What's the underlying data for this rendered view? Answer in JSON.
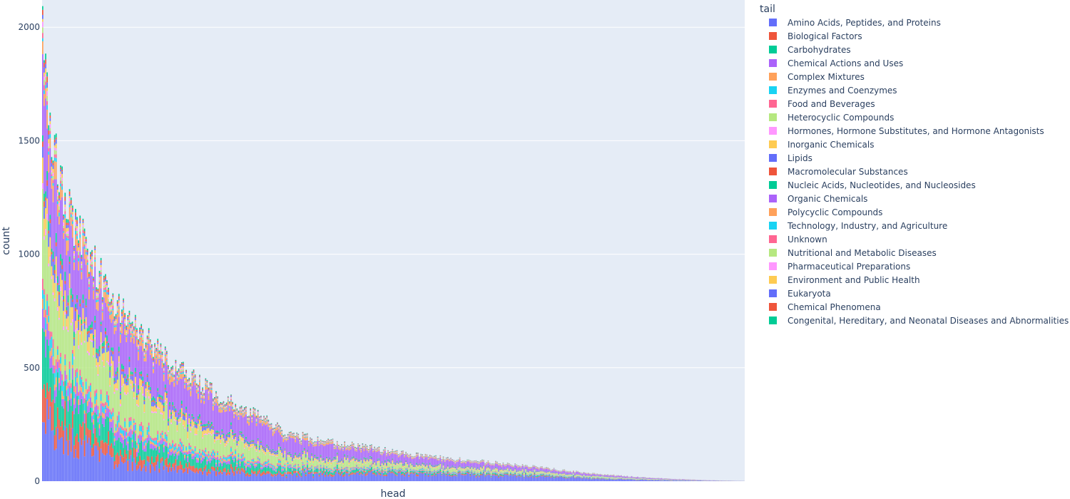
{
  "chart_data": {
    "type": "bar",
    "stacked": true,
    "title": "",
    "xlabel": "head",
    "ylabel": "count",
    "ylim": [
      0,
      2120
    ],
    "yticks": [
      "0",
      "500",
      "1000",
      "1500",
      "2000"
    ],
    "grid": true,
    "x_tick_labels_visible": false,
    "category_count": 470,
    "legend": {
      "title": "tail",
      "placement": "right"
    },
    "series": [
      {
        "name": "Amino Acids, Peptides, and Proteins",
        "color": "#636efa"
      },
      {
        "name": "Biological Factors",
        "color": "#EF553B"
      },
      {
        "name": "Carbohydrates",
        "color": "#00cc96"
      },
      {
        "name": "Chemical Actions and Uses",
        "color": "#ab63fa"
      },
      {
        "name": "Complex Mixtures",
        "color": "#FFA15A"
      },
      {
        "name": "Enzymes and Coenzymes",
        "color": "#19d3f3"
      },
      {
        "name": "Food and Beverages",
        "color": "#FF6692"
      },
      {
        "name": "Heterocyclic Compounds",
        "color": "#B6E880"
      },
      {
        "name": "Hormones, Hormone Substitutes, and Hormone Antagonists",
        "color": "#FF97FF"
      },
      {
        "name": "Inorganic Chemicals",
        "color": "#FECB52"
      },
      {
        "name": "Lipids",
        "color": "#636efa"
      },
      {
        "name": "Macromolecular Substances",
        "color": "#EF553B"
      },
      {
        "name": "Nucleic Acids, Nucleotides, and Nucleosides",
        "color": "#00cc96"
      },
      {
        "name": "Organic Chemicals",
        "color": "#ab63fa"
      },
      {
        "name": "Polycyclic Compounds",
        "color": "#FFA15A"
      },
      {
        "name": "Technology, Industry, and Agriculture",
        "color": "#19d3f3"
      },
      {
        "name": "Unknown",
        "color": "#FF6692"
      },
      {
        "name": "Nutritional and Metabolic Diseases",
        "color": "#B6E880"
      },
      {
        "name": "Pharmaceutical Preparations",
        "color": "#FF97FF"
      },
      {
        "name": "Environment and Public Health",
        "color": "#FECB52"
      },
      {
        "name": "Eukaryota",
        "color": "#636efa"
      },
      {
        "name": "Chemical Phenomena",
        "color": "#EF553B"
      },
      {
        "name": "Congenital, Hereditary, and Neonatal Diseases and Abnormalities",
        "color": "#00cc96"
      }
    ],
    "total_profile": {
      "x_fraction": [
        0,
        0.01,
        0.02,
        0.04,
        0.06,
        0.08,
        0.1,
        0.12,
        0.15,
        0.2,
        0.25,
        0.3,
        0.35,
        0.4,
        0.45,
        0.5,
        0.55,
        0.6,
        0.65,
        0.7,
        0.75,
        0.8,
        0.85,
        0.9,
        0.95,
        1.0
      ],
      "total": [
        2030,
        1610,
        1380,
        1160,
        1050,
        920,
        800,
        740,
        620,
        480,
        380,
        300,
        210,
        180,
        160,
        130,
        110,
        95,
        80,
        65,
        45,
        30,
        18,
        10,
        4,
        1
      ]
    },
    "composition_profile": {
      "x_fraction": [
        0,
        0.1,
        0.2,
        0.3,
        0.4,
        0.5,
        0.6,
        0.7,
        0.8,
        0.9,
        1.0
      ],
      "shares": [
        [
          0.17,
          0.13,
          0.1,
          0.1,
          0.18,
          0.25,
          0.32,
          0.36,
          0.36,
          0.3,
          0.3
        ],
        [
          0.07,
          0.06,
          0.05,
          0.04,
          0.04,
          0.04,
          0.04,
          0.05,
          0.05,
          0.06,
          0.06
        ],
        [
          0.1,
          0.09,
          0.09,
          0.08,
          0.07,
          0.06,
          0.06,
          0.06,
          0.05,
          0.05,
          0.05
        ],
        [
          0.04,
          0.04,
          0.03,
          0.03,
          0.02,
          0.02,
          0.02,
          0.02,
          0.02,
          0.02,
          0.02
        ],
        [
          0.02,
          0.02,
          0.02,
          0.02,
          0.02,
          0.02,
          0.02,
          0.01,
          0.01,
          0.01,
          0.01
        ],
        [
          0.03,
          0.03,
          0.03,
          0.03,
          0.03,
          0.03,
          0.03,
          0.03,
          0.03,
          0.03,
          0.03
        ],
        [
          0.02,
          0.02,
          0.02,
          0.02,
          0.02,
          0.02,
          0.02,
          0.02,
          0.02,
          0.02,
          0.02
        ],
        [
          0.18,
          0.2,
          0.2,
          0.18,
          0.15,
          0.12,
          0.1,
          0.1,
          0.1,
          0.1,
          0.1
        ],
        [
          0.01,
          0.01,
          0.01,
          0.01,
          0.01,
          0.01,
          0.01,
          0.01,
          0.01,
          0.01,
          0.01
        ],
        [
          0.05,
          0.05,
          0.05,
          0.04,
          0.04,
          0.04,
          0.04,
          0.04,
          0.04,
          0.04,
          0.04
        ],
        [
          0.03,
          0.03,
          0.03,
          0.03,
          0.03,
          0.03,
          0.03,
          0.03,
          0.03,
          0.03,
          0.03
        ],
        [
          0.01,
          0.01,
          0.01,
          0.01,
          0.01,
          0.01,
          0.01,
          0.01,
          0.01,
          0.01,
          0.01
        ],
        [
          0.02,
          0.02,
          0.02,
          0.02,
          0.02,
          0.02,
          0.02,
          0.02,
          0.02,
          0.02,
          0.02
        ],
        [
          0.18,
          0.22,
          0.26,
          0.3,
          0.3,
          0.28,
          0.24,
          0.2,
          0.2,
          0.22,
          0.22
        ],
        [
          0.04,
          0.04,
          0.04,
          0.04,
          0.04,
          0.03,
          0.03,
          0.03,
          0.03,
          0.03,
          0.03
        ],
        [
          0.01,
          0.01,
          0.01,
          0.01,
          0.01,
          0.01,
          0.01,
          0.01,
          0.01,
          0.01,
          0.01
        ],
        [
          0.01,
          0.01,
          0.01,
          0.01,
          0.01,
          0.01,
          0.01,
          0.01,
          0.01,
          0.01,
          0.01
        ],
        [
          0.01,
          0.01,
          0.01,
          0.01,
          0.01,
          0.01,
          0.01,
          0.01,
          0.01,
          0.01,
          0.01
        ],
        [
          0.01,
          0.01,
          0.01,
          0.01,
          0.01,
          0.01,
          0.01,
          0.01,
          0.01,
          0.01,
          0.01
        ],
        [
          0.01,
          0.01,
          0.01,
          0.01,
          0.01,
          0.01,
          0.01,
          0.01,
          0.01,
          0.01,
          0.01
        ],
        [
          0.01,
          0.01,
          0.01,
          0.01,
          0.01,
          0.01,
          0.01,
          0.01,
          0.01,
          0.01,
          0.01
        ],
        [
          0.01,
          0.01,
          0.01,
          0.01,
          0.01,
          0.01,
          0.01,
          0.01,
          0.01,
          0.01,
          0.01
        ],
        [
          0.01,
          0.01,
          0.01,
          0.01,
          0.01,
          0.01,
          0.01,
          0.01,
          0.01,
          0.01,
          0.01
        ]
      ]
    }
  }
}
